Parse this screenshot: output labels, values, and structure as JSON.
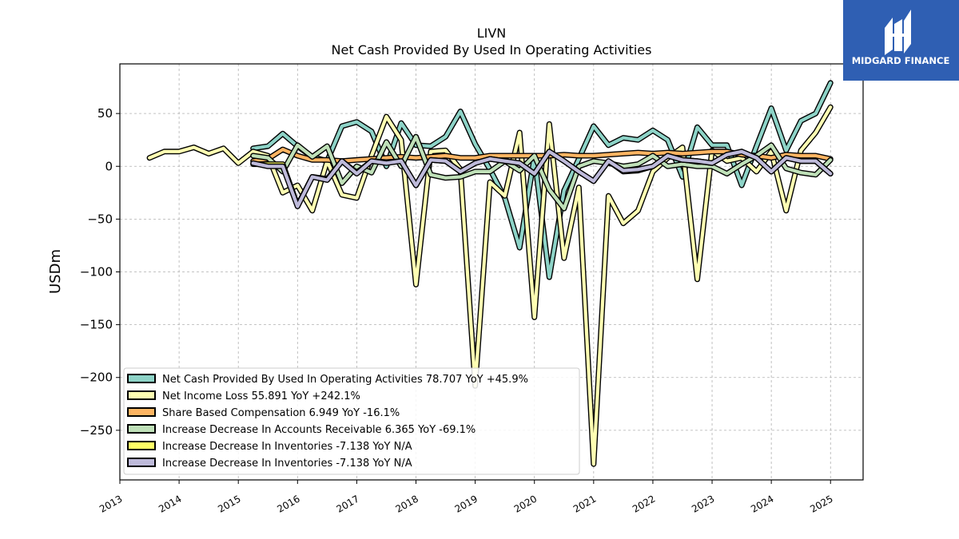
{
  "logo": {
    "text": "MIDGARD FINANCE",
    "background": "#2f5fb3"
  },
  "chart_data": {
    "type": "line",
    "title": "LIVN",
    "subtitle": "Net Cash Provided By Used In Operating Activities",
    "ylabel": "USDm",
    "xlabel": "",
    "xlim": [
      2013.0,
      2025.55
    ],
    "ylim": [
      -297,
      97
    ],
    "yticks": [
      50,
      0,
      -50,
      -100,
      -150,
      -200,
      -250
    ],
    "ytick_labels": [
      "50",
      "0",
      "−50",
      "−100",
      "−150",
      "−200",
      "−250"
    ],
    "xticks": [
      2013,
      2014,
      2015,
      2016,
      2017,
      2018,
      2019,
      2020,
      2021,
      2022,
      2023,
      2024,
      2025
    ],
    "xtick_labels": [
      "2013",
      "2014",
      "2015",
      "2016",
      "2017",
      "2018",
      "2019",
      "2020",
      "2021",
      "2022",
      "2023",
      "2024",
      "2025"
    ],
    "grid": true,
    "legend_position": "lower-left",
    "series": [
      {
        "name": "Net Cash Provided By Used In Operating Activities",
        "legend_label": "Net Cash Provided By Used In Operating Activities  78.707 YoY +45.9%",
        "color": "#8dd3c7",
        "points": [
          [
            2015.25,
            17
          ],
          [
            2015.5,
            19
          ],
          [
            2015.75,
            31
          ],
          [
            2016.0,
            19
          ],
          [
            2016.25,
            9
          ],
          [
            2016.5,
            5
          ],
          [
            2016.75,
            38
          ],
          [
            2017.0,
            42
          ],
          [
            2017.25,
            33
          ],
          [
            2017.5,
            0
          ],
          [
            2017.75,
            41
          ],
          [
            2018.0,
            20
          ],
          [
            2018.25,
            19
          ],
          [
            2018.5,
            28
          ],
          [
            2018.75,
            52
          ],
          [
            2019.0,
            21
          ],
          [
            2019.25,
            -3
          ],
          [
            2019.5,
            -30
          ],
          [
            2019.75,
            -77
          ],
          [
            2020.0,
            9
          ],
          [
            2020.25,
            -105
          ],
          [
            2020.5,
            -23
          ],
          [
            2020.75,
            7
          ],
          [
            2021.0,
            38
          ],
          [
            2021.25,
            20
          ],
          [
            2021.5,
            27
          ],
          [
            2021.75,
            25
          ],
          [
            2022.0,
            34
          ],
          [
            2022.25,
            25
          ],
          [
            2022.5,
            -10
          ],
          [
            2022.75,
            37
          ],
          [
            2023.0,
            20
          ],
          [
            2023.25,
            20
          ],
          [
            2023.5,
            -18
          ],
          [
            2023.75,
            19
          ],
          [
            2024.0,
            55
          ],
          [
            2024.25,
            15
          ],
          [
            2024.5,
            43
          ],
          [
            2024.75,
            50
          ],
          [
            2025.0,
            79
          ]
        ]
      },
      {
        "name": "Net Income Loss",
        "legend_label": "Net Income Loss  55.891 YoY +242.1%",
        "color": "#ffffb3",
        "points": [
          [
            2013.5,
            8
          ],
          [
            2013.75,
            14
          ],
          [
            2014.0,
            14
          ],
          [
            2014.25,
            18
          ],
          [
            2014.5,
            12
          ],
          [
            2014.75,
            17
          ],
          [
            2015.0,
            3
          ],
          [
            2015.25,
            14
          ],
          [
            2015.5,
            10
          ],
          [
            2015.75,
            -25
          ],
          [
            2016.0,
            -18
          ],
          [
            2016.25,
            -42
          ],
          [
            2016.5,
            5
          ],
          [
            2016.75,
            -27
          ],
          [
            2017.0,
            -30
          ],
          [
            2017.25,
            10
          ],
          [
            2017.5,
            47
          ],
          [
            2017.75,
            25
          ],
          [
            2018.0,
            -112
          ],
          [
            2018.25,
            14
          ],
          [
            2018.5,
            15
          ],
          [
            2018.75,
            -3
          ],
          [
            2019.0,
            -208
          ],
          [
            2019.25,
            -15
          ],
          [
            2019.5,
            -28
          ],
          [
            2019.75,
            32
          ],
          [
            2020.0,
            -143
          ],
          [
            2020.25,
            40
          ],
          [
            2020.5,
            -87
          ],
          [
            2020.75,
            -20
          ],
          [
            2021.0,
            -282
          ],
          [
            2021.25,
            -28
          ],
          [
            2021.5,
            -54
          ],
          [
            2021.75,
            -42
          ],
          [
            2022.0,
            -5
          ],
          [
            2022.25,
            8
          ],
          [
            2022.5,
            18
          ],
          [
            2022.75,
            -107
          ],
          [
            2023.0,
            15
          ],
          [
            2023.25,
            5
          ],
          [
            2023.5,
            8
          ],
          [
            2023.75,
            -5
          ],
          [
            2024.0,
            14
          ],
          [
            2024.25,
            -42
          ],
          [
            2024.5,
            15
          ],
          [
            2024.75,
            32
          ],
          [
            2025.0,
            56
          ]
        ]
      },
      {
        "name": "Share Based Compensation",
        "legend_label": "Share Based Compensation  6.949 YoY -16.1%",
        "color": "#fdb462",
        "points": [
          [
            2015.25,
            5
          ],
          [
            2015.5,
            7
          ],
          [
            2015.75,
            16
          ],
          [
            2016.0,
            10
          ],
          [
            2016.25,
            6
          ],
          [
            2016.5,
            6
          ],
          [
            2016.75,
            5
          ],
          [
            2017.0,
            6
          ],
          [
            2017.25,
            7
          ],
          [
            2017.5,
            8
          ],
          [
            2017.75,
            9
          ],
          [
            2018.0,
            8
          ],
          [
            2018.25,
            9
          ],
          [
            2018.5,
            10
          ],
          [
            2018.75,
            8
          ],
          [
            2019.0,
            8
          ],
          [
            2019.25,
            10
          ],
          [
            2019.5,
            10
          ],
          [
            2019.75,
            10
          ],
          [
            2020.0,
            10
          ],
          [
            2020.25,
            10
          ],
          [
            2020.5,
            11
          ],
          [
            2020.75,
            10
          ],
          [
            2021.0,
            10
          ],
          [
            2021.25,
            11
          ],
          [
            2021.5,
            12
          ],
          [
            2021.75,
            13
          ],
          [
            2022.0,
            12
          ],
          [
            2022.25,
            13
          ],
          [
            2022.5,
            12
          ],
          [
            2022.75,
            13
          ],
          [
            2023.0,
            14
          ],
          [
            2023.25,
            14
          ],
          [
            2023.5,
            11
          ],
          [
            2023.75,
            10
          ],
          [
            2024.0,
            8
          ],
          [
            2024.25,
            11
          ],
          [
            2024.5,
            10
          ],
          [
            2024.75,
            10
          ],
          [
            2025.0,
            7
          ]
        ]
      },
      {
        "name": "Increase Decrease In Accounts Receivable",
        "legend_label": "Increase Decrease In Accounts Receivable  6.365 YoY -69.1%",
        "color": "#bfe0b8",
        "points": [
          [
            2015.25,
            10
          ],
          [
            2015.5,
            8
          ],
          [
            2015.75,
            -5
          ],
          [
            2016.0,
            20
          ],
          [
            2016.25,
            9
          ],
          [
            2016.5,
            19
          ],
          [
            2016.75,
            -16
          ],
          [
            2017.0,
            0
          ],
          [
            2017.25,
            -6
          ],
          [
            2017.5,
            23
          ],
          [
            2017.75,
            0
          ],
          [
            2018.0,
            28
          ],
          [
            2018.25,
            -8
          ],
          [
            2018.5,
            -11
          ],
          [
            2018.75,
            -10
          ],
          [
            2019.0,
            -5
          ],
          [
            2019.25,
            -5
          ],
          [
            2019.5,
            5
          ],
          [
            2019.75,
            -4
          ],
          [
            2020.0,
            10
          ],
          [
            2020.25,
            -22
          ],
          [
            2020.5,
            -40
          ],
          [
            2020.75,
            0
          ],
          [
            2021.0,
            5
          ],
          [
            2021.25,
            3
          ],
          [
            2021.5,
            0
          ],
          [
            2021.75,
            2
          ],
          [
            2022.0,
            10
          ],
          [
            2022.25,
            0
          ],
          [
            2022.5,
            2
          ],
          [
            2022.75,
            0
          ],
          [
            2023.0,
            0
          ],
          [
            2023.25,
            -7
          ],
          [
            2023.5,
            2
          ],
          [
            2023.75,
            10
          ],
          [
            2024.0,
            20
          ],
          [
            2024.25,
            -2
          ],
          [
            2024.5,
            -6
          ],
          [
            2024.75,
            -8
          ],
          [
            2025.0,
            6
          ]
        ]
      },
      {
        "name": "Increase Decrease In Inventories",
        "legend_label": "Increase Decrease In Inventories  -7.138 YoY N/A",
        "color": "#ffff66",
        "points": [
          [
            2015.25,
            2
          ],
          [
            2015.5,
            2
          ],
          [
            2015.75,
            2
          ],
          [
            2016.0,
            -37
          ],
          [
            2016.25,
            -10
          ],
          [
            2016.5,
            -12
          ],
          [
            2016.75,
            5
          ],
          [
            2017.0,
            -6
          ],
          [
            2017.25,
            5
          ],
          [
            2017.5,
            4
          ],
          [
            2017.75,
            5
          ],
          [
            2018.0,
            -18
          ],
          [
            2018.25,
            6
          ],
          [
            2018.5,
            5
          ],
          [
            2018.75,
            -5
          ],
          [
            2019.0,
            3
          ],
          [
            2019.25,
            7
          ],
          [
            2019.5,
            5
          ],
          [
            2019.75,
            3
          ],
          [
            2020.0,
            -7
          ],
          [
            2020.25,
            14
          ],
          [
            2020.5,
            5
          ],
          [
            2020.75,
            -5
          ],
          [
            2021.0,
            -14
          ],
          [
            2021.25,
            5
          ],
          [
            2021.5,
            -5
          ],
          [
            2021.75,
            -4
          ],
          [
            2022.0,
            0
          ],
          [
            2022.25,
            10
          ],
          [
            2022.5,
            6
          ],
          [
            2022.75,
            5
          ],
          [
            2023.0,
            3
          ],
          [
            2023.25,
            11
          ],
          [
            2023.5,
            14
          ],
          [
            2023.75,
            8
          ],
          [
            2024.0,
            -5
          ],
          [
            2024.25,
            8
          ],
          [
            2024.5,
            5
          ],
          [
            2024.75,
            5
          ],
          [
            2025.0,
            -7
          ]
        ]
      },
      {
        "name": "Increase Decrease In Inventories",
        "legend_label": "Increase Decrease In Inventories  -7.138 YoY N/A",
        "color": "#bebada",
        "points": [
          [
            2015.25,
            3
          ],
          [
            2015.5,
            0
          ],
          [
            2015.75,
            0
          ],
          [
            2016.0,
            -38
          ],
          [
            2016.25,
            -10
          ],
          [
            2016.5,
            -13
          ],
          [
            2016.75,
            5
          ],
          [
            2017.0,
            -7
          ],
          [
            2017.25,
            5
          ],
          [
            2017.5,
            3
          ],
          [
            2017.75,
            5
          ],
          [
            2018.0,
            -18
          ],
          [
            2018.25,
            6
          ],
          [
            2018.5,
            5
          ],
          [
            2018.75,
            -5
          ],
          [
            2019.0,
            3
          ],
          [
            2019.25,
            7
          ],
          [
            2019.5,
            5
          ],
          [
            2019.75,
            3
          ],
          [
            2020.0,
            -7
          ],
          [
            2020.25,
            14
          ],
          [
            2020.5,
            5
          ],
          [
            2020.75,
            -5
          ],
          [
            2021.0,
            -14
          ],
          [
            2021.25,
            5
          ],
          [
            2021.5,
            -4
          ],
          [
            2021.75,
            -3
          ],
          [
            2022.0,
            0
          ],
          [
            2022.25,
            10
          ],
          [
            2022.5,
            6
          ],
          [
            2022.75,
            5
          ],
          [
            2023.0,
            3
          ],
          [
            2023.25,
            11
          ],
          [
            2023.5,
            14
          ],
          [
            2023.75,
            8
          ],
          [
            2024.0,
            -5
          ],
          [
            2024.25,
            8
          ],
          [
            2024.5,
            5
          ],
          [
            2024.75,
            5
          ],
          [
            2025.0,
            -7
          ]
        ]
      }
    ]
  }
}
